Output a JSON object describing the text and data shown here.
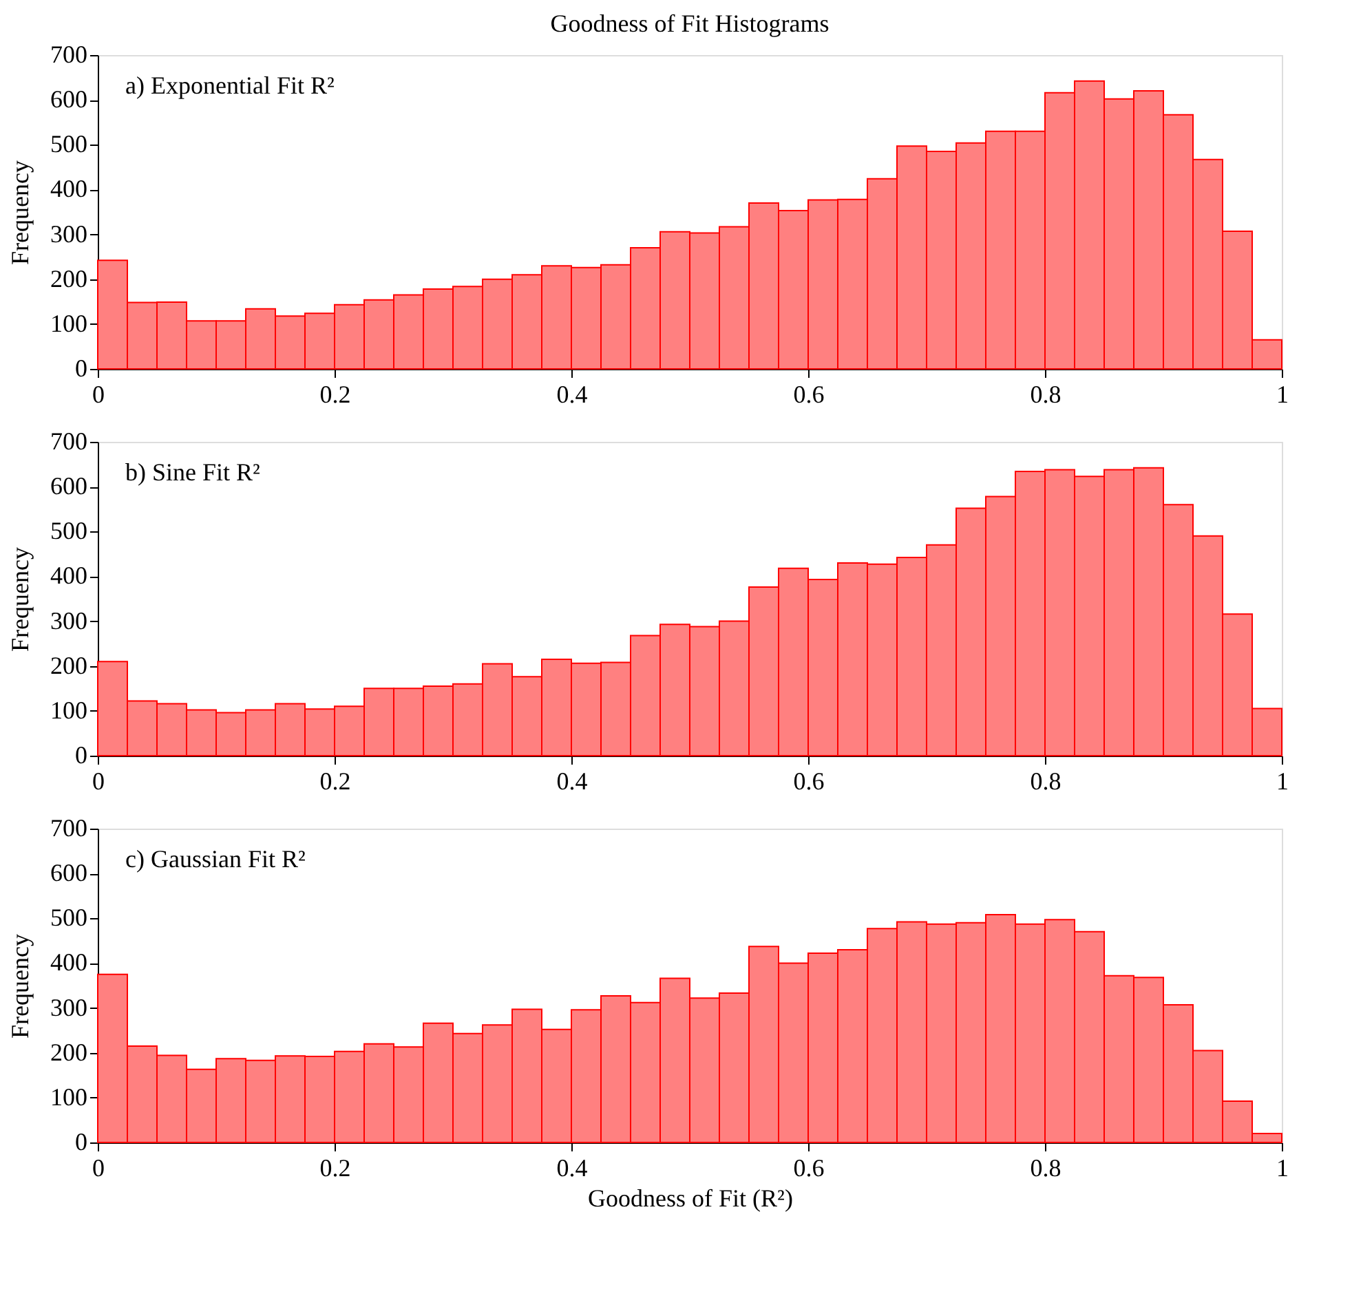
{
  "chart_data": [
    {
      "type": "histogram",
      "title": "Goodness of Fit Histograms",
      "ylabel": "Frequency",
      "annotations": [
        "a) Exponential Fit R²"
      ],
      "color": "#ff8080",
      "bins": [
        0,
        0.025,
        0.05,
        0.075,
        0.1,
        0.125,
        0.15,
        0.175,
        0.2,
        0.225,
        0.25,
        0.275,
        0.3,
        0.325,
        0.35,
        0.375,
        0.4,
        0.425,
        0.45,
        0.475,
        0.5,
        0.525,
        0.55,
        0.575,
        0.6,
        0.625,
        0.65,
        0.675,
        0.7,
        0.725,
        0.75,
        0.775,
        0.8,
        0.825,
        0.85,
        0.875,
        0.9,
        0.925,
        0.95,
        0.975,
        1
      ],
      "values": [
        242,
        148,
        149,
        107,
        107,
        134,
        118,
        124,
        143,
        154,
        165,
        178,
        184,
        200,
        210,
        230,
        226,
        232,
        270,
        306,
        303,
        317,
        370,
        353,
        377,
        378,
        424,
        497,
        485,
        504,
        530,
        530,
        616,
        642,
        602,
        620,
        567,
        467,
        307,
        65
      ],
      "xlim": [
        0,
        1
      ],
      "xticks": [
        0,
        0.2,
        0.4,
        0.6,
        0.8,
        1
      ],
      "ylim": [
        0,
        700
      ],
      "yticks": [
        0,
        100,
        200,
        300,
        400,
        500,
        600,
        700
      ],
      "grid": false
    },
    {
      "type": "histogram",
      "ylabel": "Frequency",
      "annotations": [
        "b) Sine Fit R²"
      ],
      "color": "#ff8080",
      "bins": [
        0,
        0.025,
        0.05,
        0.075,
        0.1,
        0.125,
        0.15,
        0.175,
        0.2,
        0.225,
        0.25,
        0.275,
        0.3,
        0.325,
        0.35,
        0.375,
        0.4,
        0.425,
        0.45,
        0.475,
        0.5,
        0.525,
        0.55,
        0.575,
        0.6,
        0.625,
        0.65,
        0.675,
        0.7,
        0.725,
        0.75,
        0.775,
        0.8,
        0.825,
        0.85,
        0.875,
        0.9,
        0.925,
        0.95,
        0.975,
        1
      ],
      "values": [
        210,
        122,
        116,
        102,
        96,
        102,
        116,
        104,
        110,
        150,
        150,
        155,
        160,
        205,
        176,
        215,
        206,
        208,
        268,
        293,
        288,
        300,
        376,
        418,
        393,
        430,
        427,
        442,
        470,
        552,
        578,
        634,
        638,
        623,
        638,
        642,
        560,
        490,
        316,
        105
      ],
      "xlim": [
        0,
        1
      ],
      "xticks": [
        0,
        0.2,
        0.4,
        0.6,
        0.8,
        1
      ],
      "ylim": [
        0,
        700
      ],
      "yticks": [
        0,
        100,
        200,
        300,
        400,
        500,
        600,
        700
      ],
      "grid": false
    },
    {
      "type": "histogram",
      "xlabel": "Goodness of Fit (R²)",
      "ylabel": "Frequency",
      "annotations": [
        "c) Gaussian Fit R²"
      ],
      "color": "#ff8080",
      "bins": [
        0,
        0.025,
        0.05,
        0.075,
        0.1,
        0.125,
        0.15,
        0.175,
        0.2,
        0.225,
        0.25,
        0.275,
        0.3,
        0.325,
        0.35,
        0.375,
        0.4,
        0.425,
        0.45,
        0.475,
        0.5,
        0.525,
        0.55,
        0.575,
        0.6,
        0.625,
        0.65,
        0.675,
        0.7,
        0.725,
        0.75,
        0.775,
        0.8,
        0.825,
        0.85,
        0.875,
        0.9,
        0.925,
        0.95,
        0.975,
        1
      ],
      "values": [
        375,
        215,
        194,
        163,
        187,
        183,
        193,
        192,
        203,
        220,
        213,
        266,
        243,
        262,
        297,
        252,
        296,
        327,
        312,
        366,
        322,
        333,
        437,
        400,
        422,
        430,
        477,
        492,
        487,
        490,
        508,
        487,
        497,
        470,
        372,
        368,
        307,
        205,
        92,
        20
      ],
      "xlim": [
        0,
        1
      ],
      "xticks": [
        0,
        0.2,
        0.4,
        0.6,
        0.8,
        1
      ],
      "ylim": [
        0,
        700
      ],
      "yticks": [
        0,
        100,
        200,
        300,
        400,
        500,
        600,
        700
      ],
      "grid": false
    }
  ]
}
